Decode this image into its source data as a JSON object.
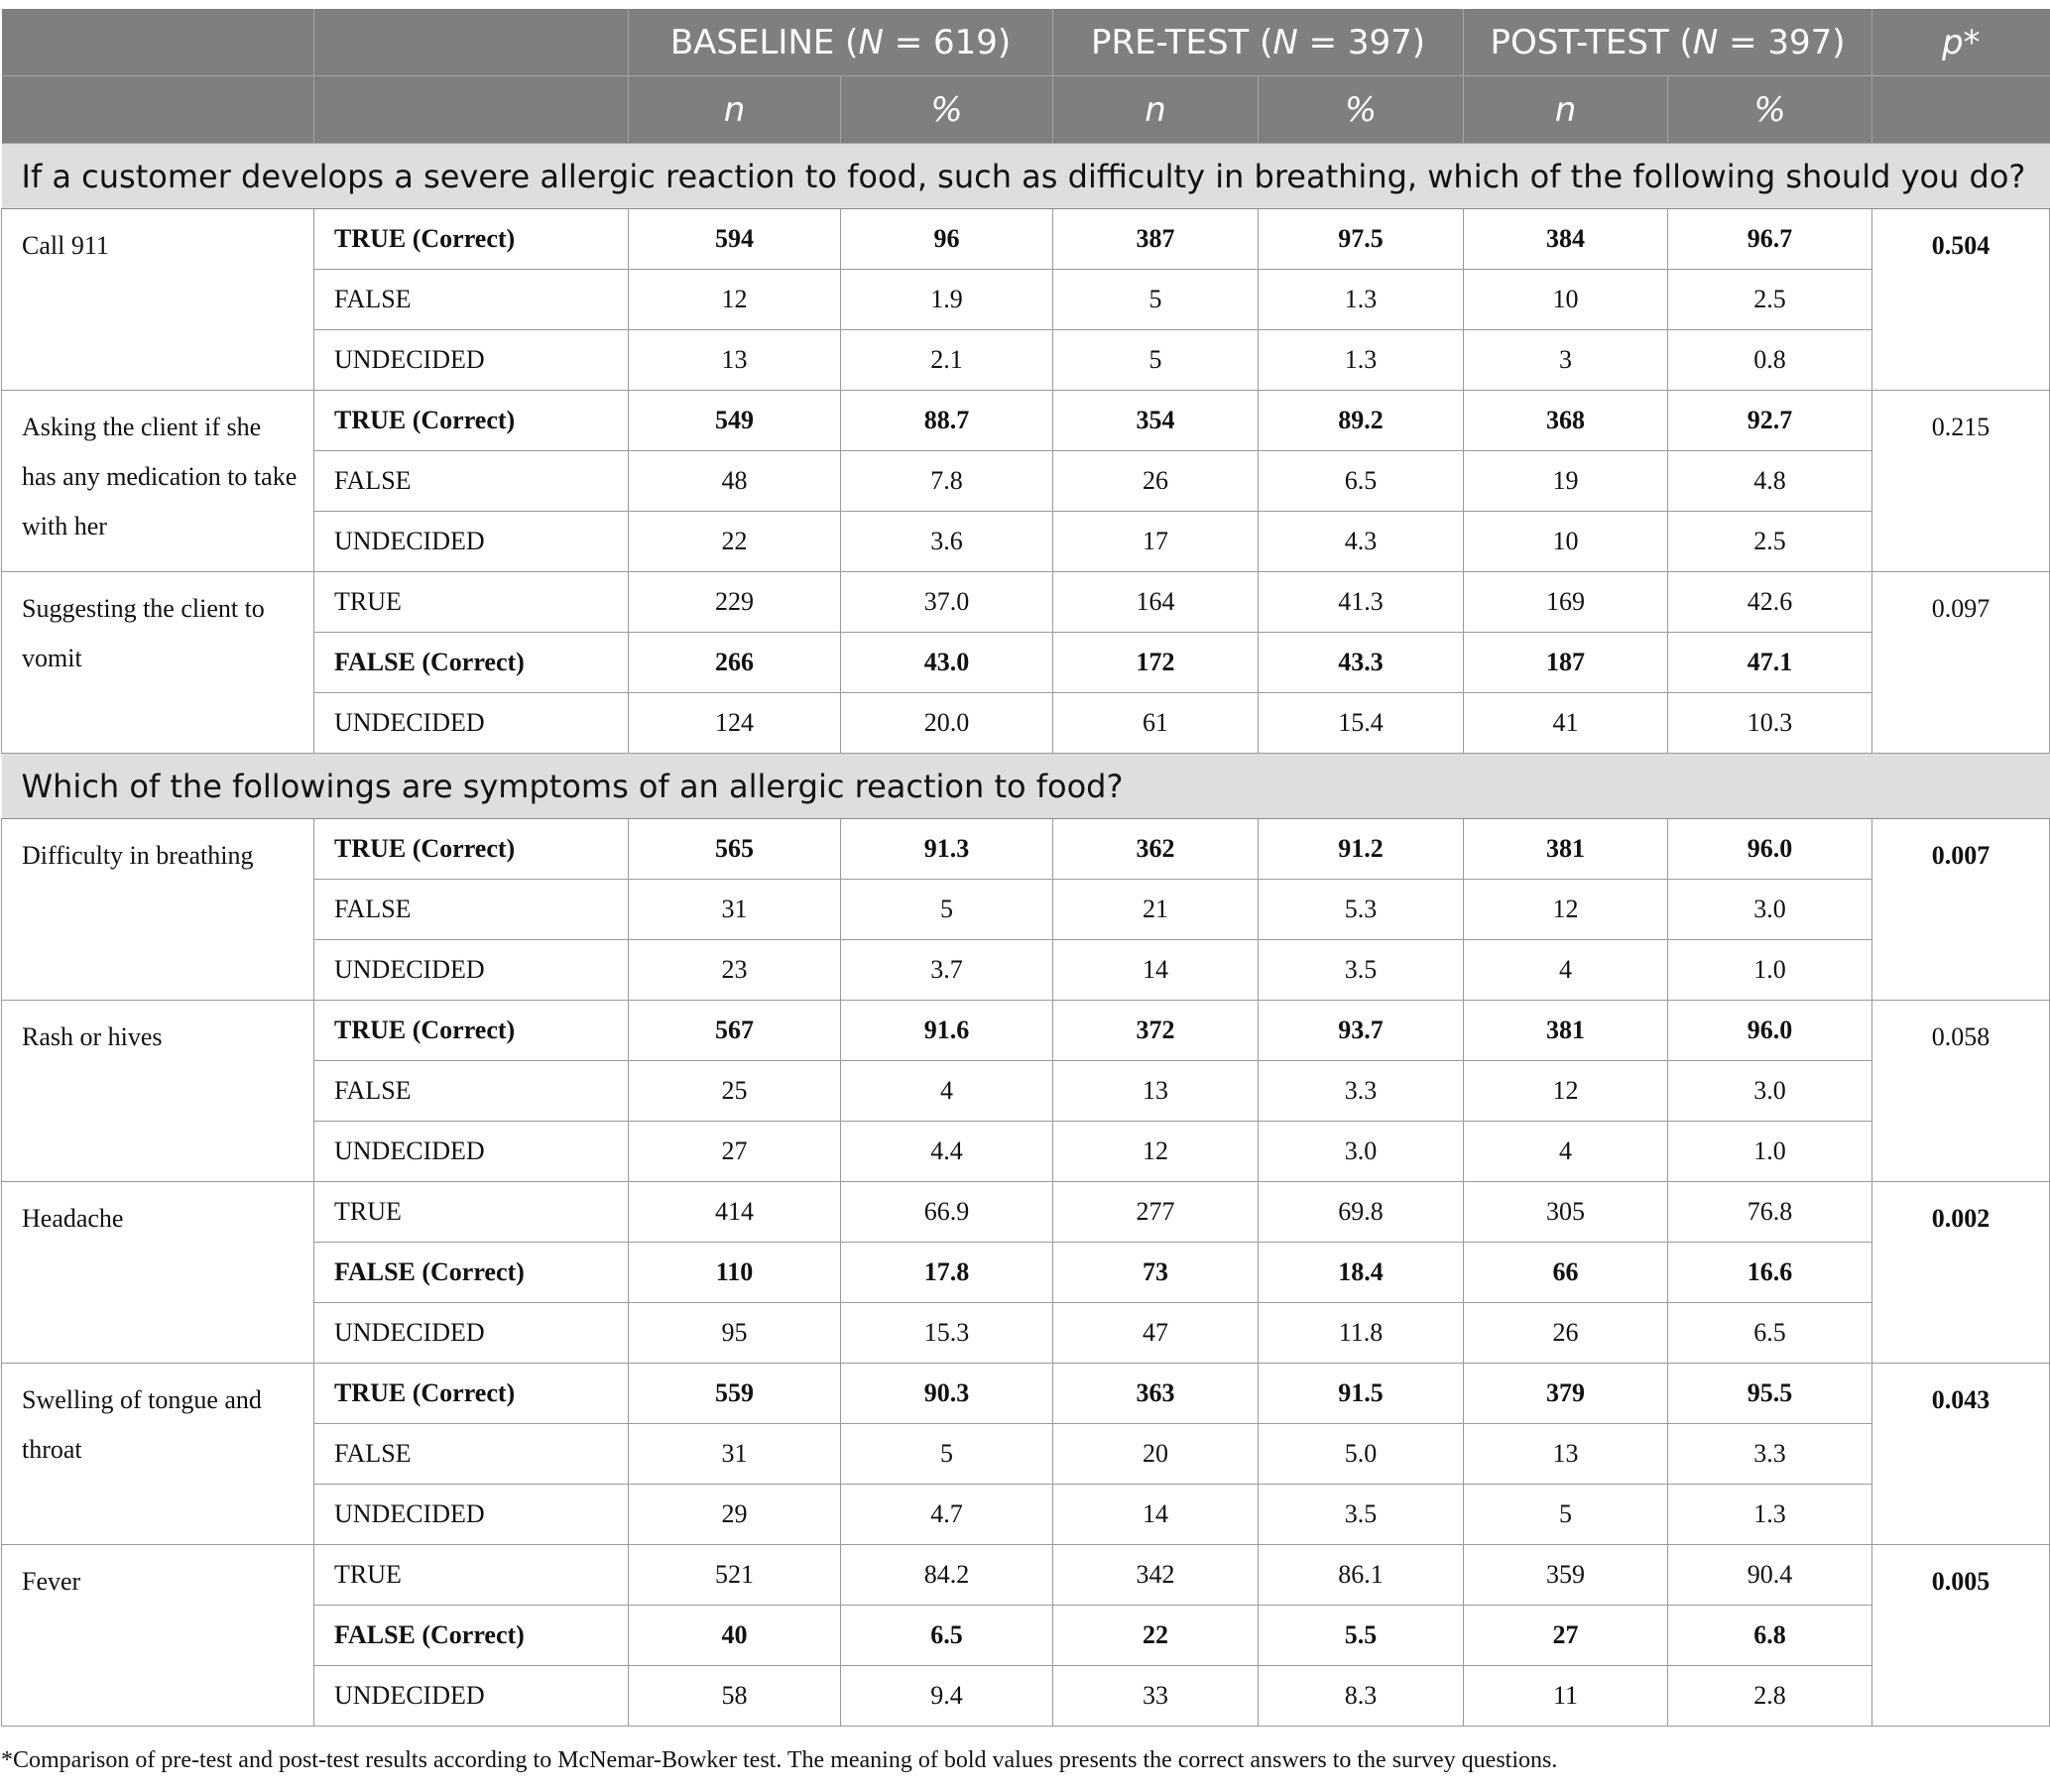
{
  "header": {
    "groups": [
      {
        "label": "BASELINE (",
        "n_symbol": "N",
        "rest": " = 619)"
      },
      {
        "label": "PRE-TEST (",
        "n_symbol": "N",
        "rest": " = 397)"
      },
      {
        "label": "POST-TEST (",
        "n_symbol": "N",
        "rest": " = 397)"
      }
    ],
    "p_label": "p*",
    "sub_n": "n",
    "sub_pct": "%"
  },
  "sections": [
    {
      "question": "If a customer develops a severe allergic reaction to food, such as difficulty in breathing, which of the following should you do?",
      "items": [
        {
          "label": "Call 911",
          "p": "0.504",
          "p_bold": true,
          "rows": [
            {
              "answer": "TRUE (Correct)",
              "bold": true,
              "values": [
                "594",
                "96",
                "387",
                "97.5",
                "384",
                "96.7"
              ]
            },
            {
              "answer": "FALSE",
              "bold": false,
              "values": [
                "12",
                "1.9",
                "5",
                "1.3",
                "10",
                "2.5"
              ]
            },
            {
              "answer": "UNDECIDED",
              "bold": false,
              "values": [
                "13",
                "2.1",
                "5",
                "1.3",
                "3",
                "0.8"
              ]
            }
          ]
        },
        {
          "label": "Asking the client if she has any medication to take with her",
          "p": "0.215",
          "p_bold": false,
          "rows": [
            {
              "answer": "TRUE (Correct)",
              "bold": true,
              "values": [
                "549",
                "88.7",
                "354",
                "89.2",
                "368",
                "92.7"
              ]
            },
            {
              "answer": "FALSE",
              "bold": false,
              "values": [
                "48",
                "7.8",
                "26",
                "6.5",
                "19",
                "4.8"
              ]
            },
            {
              "answer": "UNDECIDED",
              "bold": false,
              "values": [
                "22",
                "3.6",
                "17",
                "4.3",
                "10",
                "2.5"
              ]
            }
          ]
        },
        {
          "label": "Suggesting the client to vomit",
          "p": "0.097",
          "p_bold": false,
          "rows": [
            {
              "answer": "TRUE",
              "bold": false,
              "values": [
                "229",
                "37.0",
                "164",
                "41.3",
                "169",
                "42.6"
              ]
            },
            {
              "answer": "FALSE (Correct)",
              "bold": true,
              "values": [
                "266",
                "43.0",
                "172",
                "43.3",
                "187",
                "47.1"
              ]
            },
            {
              "answer": "UNDECIDED",
              "bold": false,
              "values": [
                "124",
                "20.0",
                "61",
                "15.4",
                "41",
                "10.3"
              ]
            }
          ]
        }
      ]
    },
    {
      "question": "Which of the followings are symptoms of an allergic reaction to food?",
      "items": [
        {
          "label": "Difficulty in breathing",
          "p": "0.007",
          "p_bold": true,
          "rows": [
            {
              "answer": "TRUE (Correct)",
              "bold": true,
              "values": [
                "565",
                "91.3",
                "362",
                "91.2",
                "381",
                "96.0"
              ]
            },
            {
              "answer": "FALSE",
              "bold": false,
              "values": [
                "31",
                "5",
                "21",
                "5.3",
                "12",
                "3.0"
              ]
            },
            {
              "answer": "UNDECIDED",
              "bold": false,
              "values": [
                "23",
                "3.7",
                "14",
                "3.5",
                "4",
                "1.0"
              ]
            }
          ]
        },
        {
          "label": "Rash or hives",
          "p": "0.058",
          "p_bold": false,
          "rows": [
            {
              "answer": "TRUE (Correct)",
              "bold": true,
              "values": [
                "567",
                "91.6",
                "372",
                "93.7",
                "381",
                "96.0"
              ]
            },
            {
              "answer": "FALSE",
              "bold": false,
              "values": [
                "25",
                "4",
                "13",
                "3.3",
                "12",
                "3.0"
              ]
            },
            {
              "answer": "UNDECIDED",
              "bold": false,
              "values": [
                "27",
                "4.4",
                "12",
                "3.0",
                "4",
                "1.0"
              ]
            }
          ]
        },
        {
          "label": "Headache",
          "p": "0.002",
          "p_bold": true,
          "rows": [
            {
              "answer": "TRUE",
              "bold": false,
              "values": [
                "414",
                "66.9",
                "277",
                "69.8",
                "305",
                "76.8"
              ]
            },
            {
              "answer": "FALSE (Correct)",
              "bold": true,
              "values": [
                "110",
                "17.8",
                "73",
                "18.4",
                "66",
                "16.6"
              ]
            },
            {
              "answer": "UNDECIDED",
              "bold": false,
              "values": [
                "95",
                "15.3",
                "47",
                "11.8",
                "26",
                "6.5"
              ]
            }
          ]
        },
        {
          "label": "Swelling of tongue and throat",
          "p": "0.043",
          "p_bold": true,
          "rows": [
            {
              "answer": "TRUE (Correct)",
              "bold": true,
              "values": [
                "559",
                "90.3",
                "363",
                "91.5",
                "379",
                "95.5"
              ]
            },
            {
              "answer": "FALSE",
              "bold": false,
              "values": [
                "31",
                "5",
                "20",
                "5.0",
                "13",
                "3.3"
              ]
            },
            {
              "answer": "UNDECIDED",
              "bold": false,
              "values": [
                "29",
                "4.7",
                "14",
                "3.5",
                "5",
                "1.3"
              ]
            }
          ]
        },
        {
          "label": "Fever",
          "p": "0.005",
          "p_bold": true,
          "rows": [
            {
              "answer": "TRUE",
              "bold": false,
              "values": [
                "521",
                "84.2",
                "342",
                "86.1",
                "359",
                "90.4"
              ]
            },
            {
              "answer": "FALSE (Correct)",
              "bold": true,
              "values": [
                "40",
                "6.5",
                "22",
                "5.5",
                "27",
                "6.8"
              ]
            },
            {
              "answer": "UNDECIDED",
              "bold": false,
              "values": [
                "58",
                "9.4",
                "33",
                "8.3",
                "11",
                "2.8"
              ]
            }
          ]
        }
      ]
    }
  ],
  "footnote": "*Comparison of pre-test and post-test results according to McNemar-Bowker test. The meaning of bold values presents the correct answers to the survey questions."
}
